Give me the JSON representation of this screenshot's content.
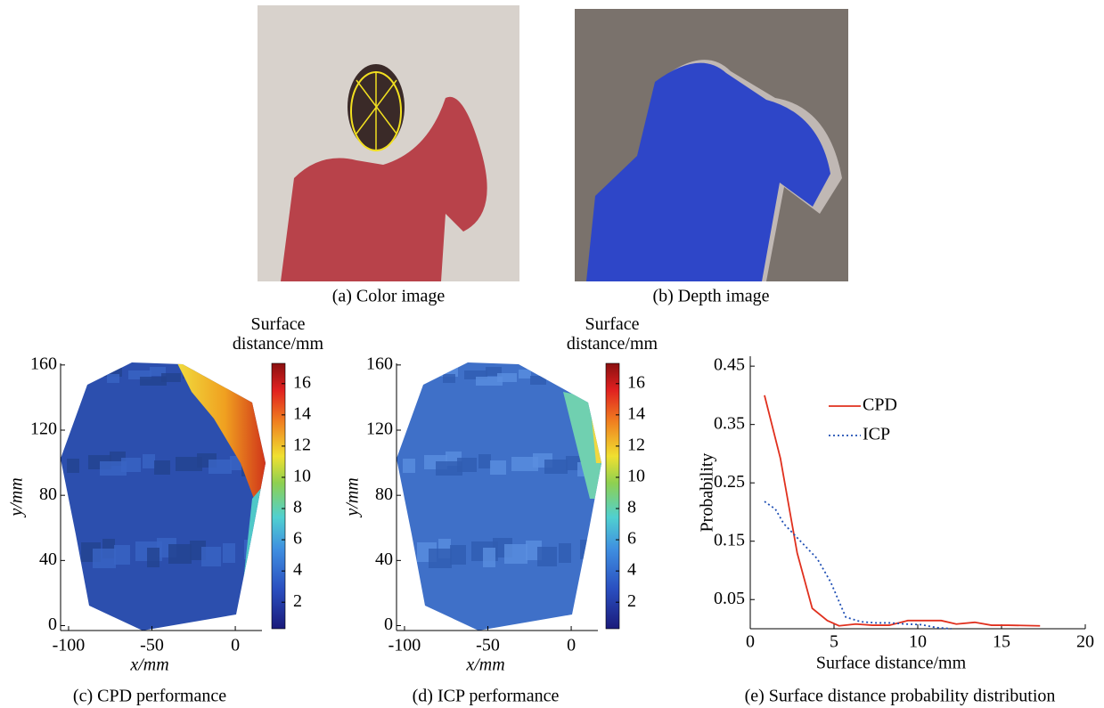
{
  "panels": [
    {
      "caption": "(a) Color image"
    },
    {
      "caption": "(b) Depth image"
    }
  ],
  "chart_data": [
    {
      "type": "heatmap",
      "caption": "(c) CPD performance",
      "xlabel": "x/mm",
      "ylabel": "y/mm",
      "xlim": [
        -108,
        16
      ],
      "xticks": [
        -100,
        -50,
        0
      ],
      "ylim": [
        -3,
        161
      ],
      "yticks": [
        0,
        40,
        80,
        120,
        160
      ],
      "colorbar_label": "Surface distance/mm",
      "clim": [
        0.3,
        17.3
      ],
      "cticks": [
        2,
        4,
        6,
        8,
        10,
        12,
        14,
        16
      ]
    },
    {
      "type": "heatmap",
      "caption": "(d) ICP performance",
      "xlabel": "x/mm",
      "ylabel": "y/mm",
      "xlim": [
        -108,
        16
      ],
      "xticks": [
        -100,
        -50,
        0
      ],
      "ylim": [
        -3,
        161
      ],
      "yticks": [
        0,
        40,
        80,
        120,
        160
      ],
      "colorbar_label": "Surface distance/mm",
      "clim": [
        0.3,
        17.3
      ],
      "cticks": [
        2,
        4,
        6,
        8,
        10,
        12,
        14,
        16
      ]
    },
    {
      "type": "line",
      "caption": "(e) Surface distance probability distribution",
      "xlabel": "Surface distance/mm",
      "ylabel": "Probability",
      "xlim": [
        0,
        20
      ],
      "xticks": [
        0,
        5,
        10,
        15,
        20
      ],
      "ylim": [
        0,
        0.467
      ],
      "yticks": [
        0.05,
        0.15,
        0.25,
        0.35,
        0.45
      ],
      "legend": "upper center",
      "series": [
        {
          "name": "CPD",
          "color": "#e0301e",
          "style": "solid",
          "x": [
            0.85,
            1.8,
            2.8,
            3.7,
            4.6,
            5.3,
            6.3,
            7.3,
            8.3,
            9.4,
            10.4,
            11.4,
            12.3,
            13.4,
            14.4,
            15.4,
            17.3
          ],
          "values": [
            0.4,
            0.292,
            0.13,
            0.035,
            0.014,
            0.005,
            0.008,
            0.006,
            0.006,
            0.014,
            0.014,
            0.014,
            0.008,
            0.011,
            0.006,
            0.006,
            0.005
          ]
        },
        {
          "name": "ICP",
          "color": "#1f4fb4",
          "style": "dotted",
          "x": [
            0.85,
            1.5,
            2,
            3,
            4,
            4.8,
            5.7,
            6.6,
            7.5,
            8.4,
            9.3,
            10.2,
            11.1,
            12
          ],
          "values": [
            0.218,
            0.205,
            0.18,
            0.15,
            0.12,
            0.08,
            0.02,
            0.012,
            0.01,
            0.01,
            0.008,
            0.007,
            0.002,
            0.0
          ]
        }
      ]
    }
  ]
}
